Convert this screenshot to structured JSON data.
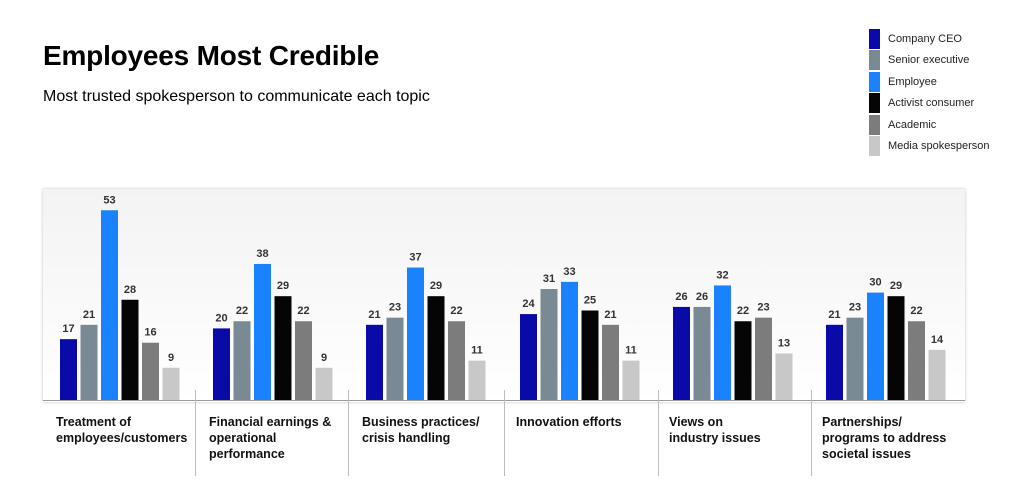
{
  "title": "Employees Most Credible",
  "subtitle": "Most trusted spokesperson to communicate each topic",
  "legend": [
    {
      "name": "Company CEO",
      "color": "#0a0aa8"
    },
    {
      "name": "Senior executive",
      "color": "#7a8a94"
    },
    {
      "name": "Employee",
      "color": "#1a82ff"
    },
    {
      "name": "Activist consumer",
      "color": "#050505"
    },
    {
      "name": "Academic",
      "color": "#7c7c7c"
    },
    {
      "name": "Media spokesperson",
      "color": "#c8c8c8"
    }
  ],
  "chart_data": {
    "type": "bar",
    "title": "Employees Most Credible",
    "subtitle": "Most trusted spokesperson to communicate each topic",
    "categories": [
      [
        "Treatment of",
        "employees/customers"
      ],
      [
        "Financial earnings &",
        "operational",
        "performance"
      ],
      [
        "Business practices/",
        "crisis handling"
      ],
      [
        "Innovation efforts"
      ],
      [
        "Views on",
        "industry issues"
      ],
      [
        "Partnerships/",
        "programs to address",
        "societal issues"
      ]
    ],
    "series": [
      {
        "name": "Company CEO",
        "values": [
          17,
          20,
          21,
          24,
          26,
          21
        ]
      },
      {
        "name": "Senior executive",
        "values": [
          21,
          22,
          23,
          31,
          26,
          23
        ]
      },
      {
        "name": "Employee",
        "values": [
          53,
          38,
          37,
          33,
          32,
          30
        ]
      },
      {
        "name": "Activist consumer",
        "values": [
          28,
          29,
          29,
          25,
          22,
          29
        ]
      },
      {
        "name": "Academic",
        "values": [
          16,
          22,
          22,
          21,
          23,
          22
        ]
      },
      {
        "name": "Media spokesperson",
        "values": [
          9,
          9,
          11,
          11,
          13,
          14
        ]
      }
    ],
    "ylim": [
      0,
      55
    ],
    "grid": false,
    "legend_position": "top-right"
  }
}
